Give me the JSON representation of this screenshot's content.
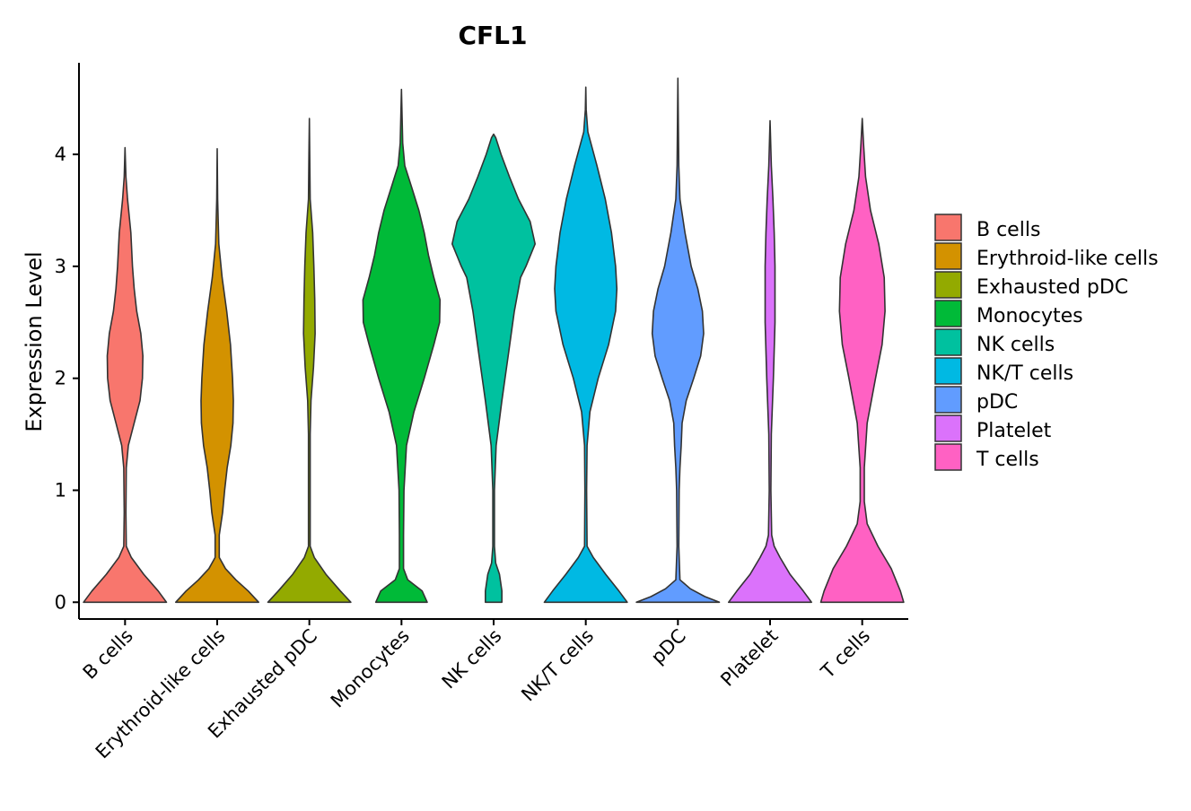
{
  "chart_data": {
    "type": "violin",
    "title": "CFL1",
    "xlabel": "",
    "ylabel": "Expression Level",
    "ylim": [
      -0.15,
      4.85
    ],
    "yticks": [
      0,
      1,
      2,
      3,
      4
    ],
    "grid": false,
    "legend_position": "right",
    "categories": [
      "B cells",
      "Erythroid-like cells",
      "Exhausted pDC",
      "Monocytes",
      "NK cells",
      "NK/T cells",
      "pDC",
      "Platelet",
      "T cells"
    ],
    "series": [
      {
        "name": "B cells",
        "color": "#F8766D",
        "max": 4.06,
        "profile": [
          [
            0,
            1.0
          ],
          [
            0.1,
            0.8
          ],
          [
            0.25,
            0.45
          ],
          [
            0.4,
            0.15
          ],
          [
            0.5,
            0.03
          ],
          [
            0.8,
            0.02
          ],
          [
            1.2,
            0.03
          ],
          [
            1.4,
            0.08
          ],
          [
            1.6,
            0.22
          ],
          [
            1.8,
            0.36
          ],
          [
            2.0,
            0.42
          ],
          [
            2.2,
            0.43
          ],
          [
            2.4,
            0.38
          ],
          [
            2.6,
            0.28
          ],
          [
            2.8,
            0.22
          ],
          [
            3.0,
            0.18
          ],
          [
            3.3,
            0.14
          ],
          [
            3.6,
            0.06
          ],
          [
            3.8,
            0.02
          ],
          [
            4.06,
            0
          ]
        ]
      },
      {
        "name": "Erythroid-like cells",
        "color": "#D39200",
        "max": 4.05,
        "profile": [
          [
            0,
            1.0
          ],
          [
            0.1,
            0.75
          ],
          [
            0.2,
            0.45
          ],
          [
            0.3,
            0.2
          ],
          [
            0.4,
            0.05
          ],
          [
            0.6,
            0.05
          ],
          [
            0.8,
            0.13
          ],
          [
            1.0,
            0.18
          ],
          [
            1.2,
            0.24
          ],
          [
            1.4,
            0.33
          ],
          [
            1.6,
            0.38
          ],
          [
            1.8,
            0.39
          ],
          [
            2.0,
            0.37
          ],
          [
            2.3,
            0.32
          ],
          [
            2.6,
            0.23
          ],
          [
            2.9,
            0.12
          ],
          [
            3.2,
            0.04
          ],
          [
            3.6,
            0.01
          ],
          [
            4.05,
            0
          ]
        ]
      },
      {
        "name": "Exhausted pDC",
        "color": "#93AA00",
        "max": 4.32,
        "profile": [
          [
            0,
            1.0
          ],
          [
            0.1,
            0.75
          ],
          [
            0.25,
            0.4
          ],
          [
            0.4,
            0.12
          ],
          [
            0.5,
            0.02
          ],
          [
            1.5,
            0.02
          ],
          [
            1.8,
            0.04
          ],
          [
            2.1,
            0.1
          ],
          [
            2.4,
            0.14
          ],
          [
            2.7,
            0.13
          ],
          [
            3.0,
            0.11
          ],
          [
            3.3,
            0.08
          ],
          [
            3.6,
            0.02
          ],
          [
            4.0,
            0.01
          ],
          [
            4.32,
            0
          ]
        ]
      },
      {
        "name": "Monocytes",
        "color": "#00BA38",
        "max": 4.58,
        "profile": [
          [
            0,
            0.62
          ],
          [
            0.1,
            0.5
          ],
          [
            0.2,
            0.15
          ],
          [
            0.3,
            0.05
          ],
          [
            0.6,
            0.05
          ],
          [
            1.0,
            0.06
          ],
          [
            1.4,
            0.12
          ],
          [
            1.7,
            0.3
          ],
          [
            2.0,
            0.55
          ],
          [
            2.3,
            0.78
          ],
          [
            2.5,
            0.92
          ],
          [
            2.7,
            0.93
          ],
          [
            2.9,
            0.78
          ],
          [
            3.1,
            0.65
          ],
          [
            3.3,
            0.55
          ],
          [
            3.5,
            0.42
          ],
          [
            3.7,
            0.25
          ],
          [
            3.9,
            0.08
          ],
          [
            4.1,
            0.03
          ],
          [
            4.58,
            0
          ]
        ]
      },
      {
        "name": "NK cells",
        "color": "#00C19F",
        "max": 4.18,
        "profile": [
          [
            0,
            0.2
          ],
          [
            0.1,
            0.2
          ],
          [
            0.25,
            0.14
          ],
          [
            0.35,
            0.05
          ],
          [
            0.5,
            0.02
          ],
          [
            1.0,
            0.02
          ],
          [
            1.4,
            0.06
          ],
          [
            1.8,
            0.2
          ],
          [
            2.2,
            0.35
          ],
          [
            2.6,
            0.5
          ],
          [
            2.9,
            0.65
          ],
          [
            3.0,
            0.78
          ],
          [
            3.2,
            1.0
          ],
          [
            3.4,
            0.88
          ],
          [
            3.6,
            0.6
          ],
          [
            3.8,
            0.38
          ],
          [
            4.0,
            0.18
          ],
          [
            4.15,
            0.05
          ],
          [
            4.18,
            0
          ]
        ]
      },
      {
        "name": "NK/T cells",
        "color": "#00B9E3",
        "max": 4.6,
        "profile": [
          [
            0,
            1.0
          ],
          [
            0.1,
            0.8
          ],
          [
            0.25,
            0.48
          ],
          [
            0.4,
            0.18
          ],
          [
            0.5,
            0.03
          ],
          [
            1.0,
            0.02
          ],
          [
            1.4,
            0.03
          ],
          [
            1.7,
            0.1
          ],
          [
            2.0,
            0.3
          ],
          [
            2.3,
            0.55
          ],
          [
            2.6,
            0.72
          ],
          [
            2.8,
            0.75
          ],
          [
            3.0,
            0.72
          ],
          [
            3.3,
            0.62
          ],
          [
            3.6,
            0.47
          ],
          [
            3.9,
            0.27
          ],
          [
            4.2,
            0.05
          ],
          [
            4.4,
            0.01
          ],
          [
            4.6,
            0
          ]
        ]
      },
      {
        "name": "pDC",
        "color": "#619CFF",
        "max": 4.68,
        "profile": [
          [
            0,
            1.0
          ],
          [
            0.05,
            0.65
          ],
          [
            0.12,
            0.3
          ],
          [
            0.2,
            0.05
          ],
          [
            0.5,
            0.02
          ],
          [
            1.0,
            0.03
          ],
          [
            1.2,
            0.05
          ],
          [
            1.4,
            0.08
          ],
          [
            1.6,
            0.1
          ],
          [
            1.8,
            0.2
          ],
          [
            2.0,
            0.38
          ],
          [
            2.2,
            0.55
          ],
          [
            2.4,
            0.62
          ],
          [
            2.6,
            0.59
          ],
          [
            2.8,
            0.48
          ],
          [
            3.0,
            0.32
          ],
          [
            3.3,
            0.17
          ],
          [
            3.6,
            0.05
          ],
          [
            3.9,
            0.02
          ],
          [
            4.68,
            0
          ]
        ]
      },
      {
        "name": "Platelet",
        "color": "#DB72FB",
        "max": 4.3,
        "profile": [
          [
            0,
            1.0
          ],
          [
            0.1,
            0.8
          ],
          [
            0.25,
            0.48
          ],
          [
            0.4,
            0.24
          ],
          [
            0.5,
            0.1
          ],
          [
            0.6,
            0.04
          ],
          [
            1.0,
            0.02
          ],
          [
            1.5,
            0.03
          ],
          [
            2.0,
            0.08
          ],
          [
            2.5,
            0.12
          ],
          [
            3.0,
            0.12
          ],
          [
            3.3,
            0.1
          ],
          [
            3.6,
            0.07
          ],
          [
            3.9,
            0.03
          ],
          [
            4.3,
            0
          ]
        ]
      },
      {
        "name": "T cells",
        "color": "#FF61C3",
        "max": 4.32,
        "profile": [
          [
            0,
            1.0
          ],
          [
            0.1,
            0.92
          ],
          [
            0.3,
            0.7
          ],
          [
            0.5,
            0.38
          ],
          [
            0.7,
            0.12
          ],
          [
            0.9,
            0.05
          ],
          [
            1.2,
            0.05
          ],
          [
            1.6,
            0.12
          ],
          [
            2.0,
            0.32
          ],
          [
            2.3,
            0.48
          ],
          [
            2.6,
            0.55
          ],
          [
            2.9,
            0.53
          ],
          [
            3.2,
            0.4
          ],
          [
            3.5,
            0.2
          ],
          [
            3.8,
            0.08
          ],
          [
            4.1,
            0.03
          ],
          [
            4.32,
            0
          ]
        ]
      }
    ]
  }
}
